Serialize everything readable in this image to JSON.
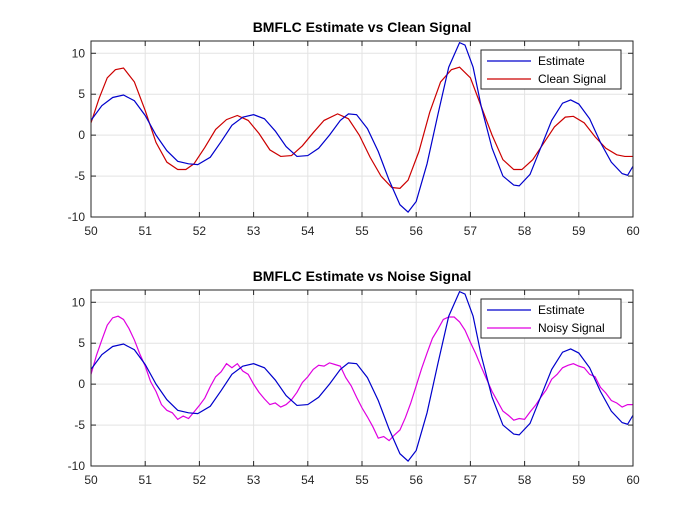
{
  "chart_data": [
    {
      "type": "line",
      "title": "BMFLC Estimate vs Clean Signal",
      "xlabel": "",
      "ylabel": "",
      "xlim": [
        50,
        60
      ],
      "ylim": [
        -10,
        11.5
      ],
      "xticks": [
        50,
        51,
        52,
        53,
        54,
        55,
        56,
        57,
        58,
        59,
        60
      ],
      "yticks": [
        -10,
        -5,
        0,
        5,
        10
      ],
      "grid": true,
      "legend": "top-right",
      "series": [
        {
          "name": "Estimate",
          "color": "#0000cc",
          "points": [
            [
              50,
              1.8
            ],
            [
              50.2,
              3.6
            ],
            [
              50.4,
              4.6
            ],
            [
              50.6,
              4.9
            ],
            [
              50.8,
              4.2
            ],
            [
              51.0,
              2.4
            ],
            [
              51.2,
              0.0
            ],
            [
              51.4,
              -1.9
            ],
            [
              51.6,
              -3.2
            ],
            [
              51.8,
              -3.5
            ],
            [
              51.97,
              -3.6
            ],
            [
              52.2,
              -2.7
            ],
            [
              52.4,
              -0.8
            ],
            [
              52.6,
              1.2
            ],
            [
              52.8,
              2.2
            ],
            [
              53.0,
              2.5
            ],
            [
              53.2,
              2.0
            ],
            [
              53.4,
              0.5
            ],
            [
              53.6,
              -1.4
            ],
            [
              53.8,
              -2.6
            ],
            [
              54.0,
              -2.5
            ],
            [
              54.2,
              -1.6
            ],
            [
              54.4,
              0.0
            ],
            [
              54.6,
              1.8
            ],
            [
              54.75,
              2.6
            ],
            [
              54.9,
              2.5
            ],
            [
              55.1,
              0.8
            ],
            [
              55.3,
              -2.0
            ],
            [
              55.5,
              -5.5
            ],
            [
              55.7,
              -8.5
            ],
            [
              55.85,
              -9.4
            ],
            [
              56.0,
              -8.1
            ],
            [
              56.2,
              -3.5
            ],
            [
              56.4,
              2.5
            ],
            [
              56.6,
              8.3
            ],
            [
              56.8,
              11.3
            ],
            [
              56.9,
              11.0
            ],
            [
              57.05,
              8.3
            ],
            [
              57.2,
              3.5
            ],
            [
              57.4,
              -1.6
            ],
            [
              57.6,
              -5.0
            ],
            [
              57.8,
              -6.1
            ],
            [
              57.9,
              -6.2
            ],
            [
              58.1,
              -4.8
            ],
            [
              58.3,
              -1.5
            ],
            [
              58.5,
              1.8
            ],
            [
              58.7,
              3.9
            ],
            [
              58.85,
              4.3
            ],
            [
              59.0,
              3.8
            ],
            [
              59.2,
              2.0
            ],
            [
              59.4,
              -0.9
            ],
            [
              59.6,
              -3.3
            ],
            [
              59.8,
              -4.7
            ],
            [
              59.9,
              -4.9
            ],
            [
              60.0,
              -3.8
            ]
          ]
        },
        {
          "name": "Clean Signal",
          "color": "#cc0000",
          "points": [
            [
              50,
              1.5
            ],
            [
              50.15,
              4.5
            ],
            [
              50.3,
              7.0
            ],
            [
              50.45,
              8.0
            ],
            [
              50.6,
              8.2
            ],
            [
              50.8,
              6.5
            ],
            [
              51.0,
              3.0
            ],
            [
              51.2,
              -0.9
            ],
            [
              51.4,
              -3.3
            ],
            [
              51.6,
              -4.2
            ],
            [
              51.75,
              -4.2
            ],
            [
              51.9,
              -3.5
            ],
            [
              52.1,
              -1.5
            ],
            [
              52.3,
              0.7
            ],
            [
              52.5,
              1.9
            ],
            [
              52.7,
              2.4
            ],
            [
              52.9,
              1.8
            ],
            [
              53.1,
              0.2
            ],
            [
              53.3,
              -1.8
            ],
            [
              53.5,
              -2.6
            ],
            [
              53.7,
              -2.5
            ],
            [
              53.9,
              -1.3
            ],
            [
              54.1,
              0.3
            ],
            [
              54.3,
              1.8
            ],
            [
              54.55,
              2.6
            ],
            [
              54.75,
              2.0
            ],
            [
              54.95,
              0.0
            ],
            [
              55.15,
              -2.7
            ],
            [
              55.35,
              -5.0
            ],
            [
              55.55,
              -6.4
            ],
            [
              55.7,
              -6.5
            ],
            [
              55.85,
              -5.5
            ],
            [
              56.05,
              -2.0
            ],
            [
              56.25,
              2.8
            ],
            [
              56.45,
              6.5
            ],
            [
              56.65,
              8.0
            ],
            [
              56.8,
              8.3
            ],
            [
              57.0,
              7.0
            ],
            [
              57.2,
              3.5
            ],
            [
              57.4,
              0.0
            ],
            [
              57.6,
              -3.0
            ],
            [
              57.8,
              -4.2
            ],
            [
              57.95,
              -4.2
            ],
            [
              58.15,
              -3.0
            ],
            [
              58.35,
              -1.0
            ],
            [
              58.55,
              1.0
            ],
            [
              58.75,
              2.2
            ],
            [
              58.9,
              2.3
            ],
            [
              59.1,
              1.5
            ],
            [
              59.3,
              -0.2
            ],
            [
              59.5,
              -1.6
            ],
            [
              59.7,
              -2.4
            ],
            [
              59.85,
              -2.6
            ],
            [
              60.0,
              -2.6
            ]
          ]
        }
      ]
    },
    {
      "type": "line",
      "title": "BMFLC Estimate vs Noise Signal",
      "xlabel": "",
      "ylabel": "",
      "xlim": [
        50,
        60
      ],
      "ylim": [
        -10,
        11.5
      ],
      "xticks": [
        50,
        51,
        52,
        53,
        54,
        55,
        56,
        57,
        58,
        59,
        60
      ],
      "yticks": [
        -10,
        -5,
        0,
        5,
        10
      ],
      "grid": true,
      "legend": "top-right",
      "series": [
        {
          "name": "Estimate",
          "color": "#0000cc",
          "points": [
            [
              50,
              1.8
            ],
            [
              50.2,
              3.6
            ],
            [
              50.4,
              4.6
            ],
            [
              50.6,
              4.9
            ],
            [
              50.8,
              4.2
            ],
            [
              51.0,
              2.4
            ],
            [
              51.2,
              0.0
            ],
            [
              51.4,
              -1.9
            ],
            [
              51.6,
              -3.2
            ],
            [
              51.8,
              -3.5
            ],
            [
              51.97,
              -3.6
            ],
            [
              52.2,
              -2.7
            ],
            [
              52.4,
              -0.8
            ],
            [
              52.6,
              1.2
            ],
            [
              52.8,
              2.2
            ],
            [
              53.0,
              2.5
            ],
            [
              53.2,
              2.0
            ],
            [
              53.4,
              0.5
            ],
            [
              53.6,
              -1.4
            ],
            [
              53.8,
              -2.6
            ],
            [
              54.0,
              -2.5
            ],
            [
              54.2,
              -1.6
            ],
            [
              54.4,
              0.0
            ],
            [
              54.6,
              1.8
            ],
            [
              54.75,
              2.6
            ],
            [
              54.9,
              2.5
            ],
            [
              55.1,
              0.8
            ],
            [
              55.3,
              -2.0
            ],
            [
              55.5,
              -5.5
            ],
            [
              55.7,
              -8.5
            ],
            [
              55.85,
              -9.4
            ],
            [
              56.0,
              -8.1
            ],
            [
              56.2,
              -3.5
            ],
            [
              56.4,
              2.5
            ],
            [
              56.6,
              8.3
            ],
            [
              56.8,
              11.3
            ],
            [
              56.9,
              11.0
            ],
            [
              57.05,
              8.3
            ],
            [
              57.2,
              3.5
            ],
            [
              57.4,
              -1.6
            ],
            [
              57.6,
              -5.0
            ],
            [
              57.8,
              -6.1
            ],
            [
              57.9,
              -6.2
            ],
            [
              58.1,
              -4.8
            ],
            [
              58.3,
              -1.5
            ],
            [
              58.5,
              1.8
            ],
            [
              58.7,
              3.9
            ],
            [
              58.85,
              4.3
            ],
            [
              59.0,
              3.8
            ],
            [
              59.2,
              2.0
            ],
            [
              59.4,
              -0.9
            ],
            [
              59.6,
              -3.3
            ],
            [
              59.8,
              -4.7
            ],
            [
              59.9,
              -4.9
            ],
            [
              60.0,
              -3.8
            ]
          ]
        },
        {
          "name": "Noisy Signal",
          "color": "#e000e0",
          "points": [
            [
              50,
              1.2
            ],
            [
              50.1,
              3.5
            ],
            [
              50.2,
              5.4
            ],
            [
              50.3,
              7.2
            ],
            [
              50.4,
              8.1
            ],
            [
              50.5,
              8.3
            ],
            [
              50.6,
              7.9
            ],
            [
              50.7,
              6.8
            ],
            [
              50.8,
              5.4
            ],
            [
              50.9,
              3.7
            ],
            [
              51.0,
              2.2
            ],
            [
              51.1,
              0.3
            ],
            [
              51.2,
              -0.9
            ],
            [
              51.3,
              -2.5
            ],
            [
              51.4,
              -3.2
            ],
            [
              51.5,
              -3.5
            ],
            [
              51.6,
              -4.3
            ],
            [
              51.7,
              -3.9
            ],
            [
              51.8,
              -4.2
            ],
            [
              51.9,
              -3.4
            ],
            [
              52.0,
              -2.6
            ],
            [
              52.1,
              -1.7
            ],
            [
              52.2,
              -0.3
            ],
            [
              52.3,
              0.9
            ],
            [
              52.4,
              1.5
            ],
            [
              52.5,
              2.5
            ],
            [
              52.6,
              2.0
            ],
            [
              52.7,
              2.5
            ],
            [
              52.8,
              1.6
            ],
            [
              52.9,
              1.2
            ],
            [
              53.0,
              0.0
            ],
            [
              53.1,
              -1.0
            ],
            [
              53.2,
              -1.8
            ],
            [
              53.3,
              -2.5
            ],
            [
              53.4,
              -2.3
            ],
            [
              53.5,
              -2.8
            ],
            [
              53.6,
              -2.5
            ],
            [
              53.7,
              -1.9
            ],
            [
              53.8,
              -1.0
            ],
            [
              53.9,
              0.2
            ],
            [
              54.0,
              0.9
            ],
            [
              54.1,
              1.8
            ],
            [
              54.2,
              2.3
            ],
            [
              54.3,
              2.2
            ],
            [
              54.4,
              2.6
            ],
            [
              54.5,
              2.4
            ],
            [
              54.6,
              2.2
            ],
            [
              54.7,
              0.8
            ],
            [
              54.8,
              -0.2
            ],
            [
              54.9,
              -1.6
            ],
            [
              55.0,
              -2.9
            ],
            [
              55.1,
              -4.0
            ],
            [
              55.2,
              -5.2
            ],
            [
              55.3,
              -6.6
            ],
            [
              55.4,
              -6.4
            ],
            [
              55.5,
              -6.9
            ],
            [
              55.6,
              -6.2
            ],
            [
              55.7,
              -5.6
            ],
            [
              55.8,
              -4.1
            ],
            [
              55.9,
              -2.3
            ],
            [
              56.0,
              -0.2
            ],
            [
              56.1,
              1.9
            ],
            [
              56.2,
              3.8
            ],
            [
              56.3,
              5.6
            ],
            [
              56.4,
              6.7
            ],
            [
              56.5,
              7.9
            ],
            [
              56.6,
              8.2
            ],
            [
              56.7,
              8.2
            ],
            [
              56.8,
              7.6
            ],
            [
              56.9,
              6.6
            ],
            [
              57.0,
              5.1
            ],
            [
              57.1,
              3.7
            ],
            [
              57.2,
              2.1
            ],
            [
              57.3,
              0.6
            ],
            [
              57.4,
              -0.9
            ],
            [
              57.5,
              -2.1
            ],
            [
              57.6,
              -3.3
            ],
            [
              57.7,
              -3.8
            ],
            [
              57.8,
              -4.4
            ],
            [
              57.9,
              -4.2
            ],
            [
              58.0,
              -4.3
            ],
            [
              58.1,
              -3.4
            ],
            [
              58.2,
              -2.6
            ],
            [
              58.3,
              -1.6
            ],
            [
              58.4,
              -0.7
            ],
            [
              58.5,
              0.6
            ],
            [
              58.6,
              1.2
            ],
            [
              58.7,
              2.0
            ],
            [
              58.8,
              2.3
            ],
            [
              58.9,
              2.5
            ],
            [
              59.0,
              2.2
            ],
            [
              59.1,
              2.0
            ],
            [
              59.2,
              1.2
            ],
            [
              59.3,
              0.9
            ],
            [
              59.4,
              -0.4
            ],
            [
              59.5,
              -1.1
            ],
            [
              59.6,
              -2.0
            ],
            [
              59.7,
              -2.3
            ],
            [
              59.8,
              -2.8
            ],
            [
              59.9,
              -2.5
            ],
            [
              60.0,
              -2.5
            ]
          ]
        }
      ]
    }
  ]
}
